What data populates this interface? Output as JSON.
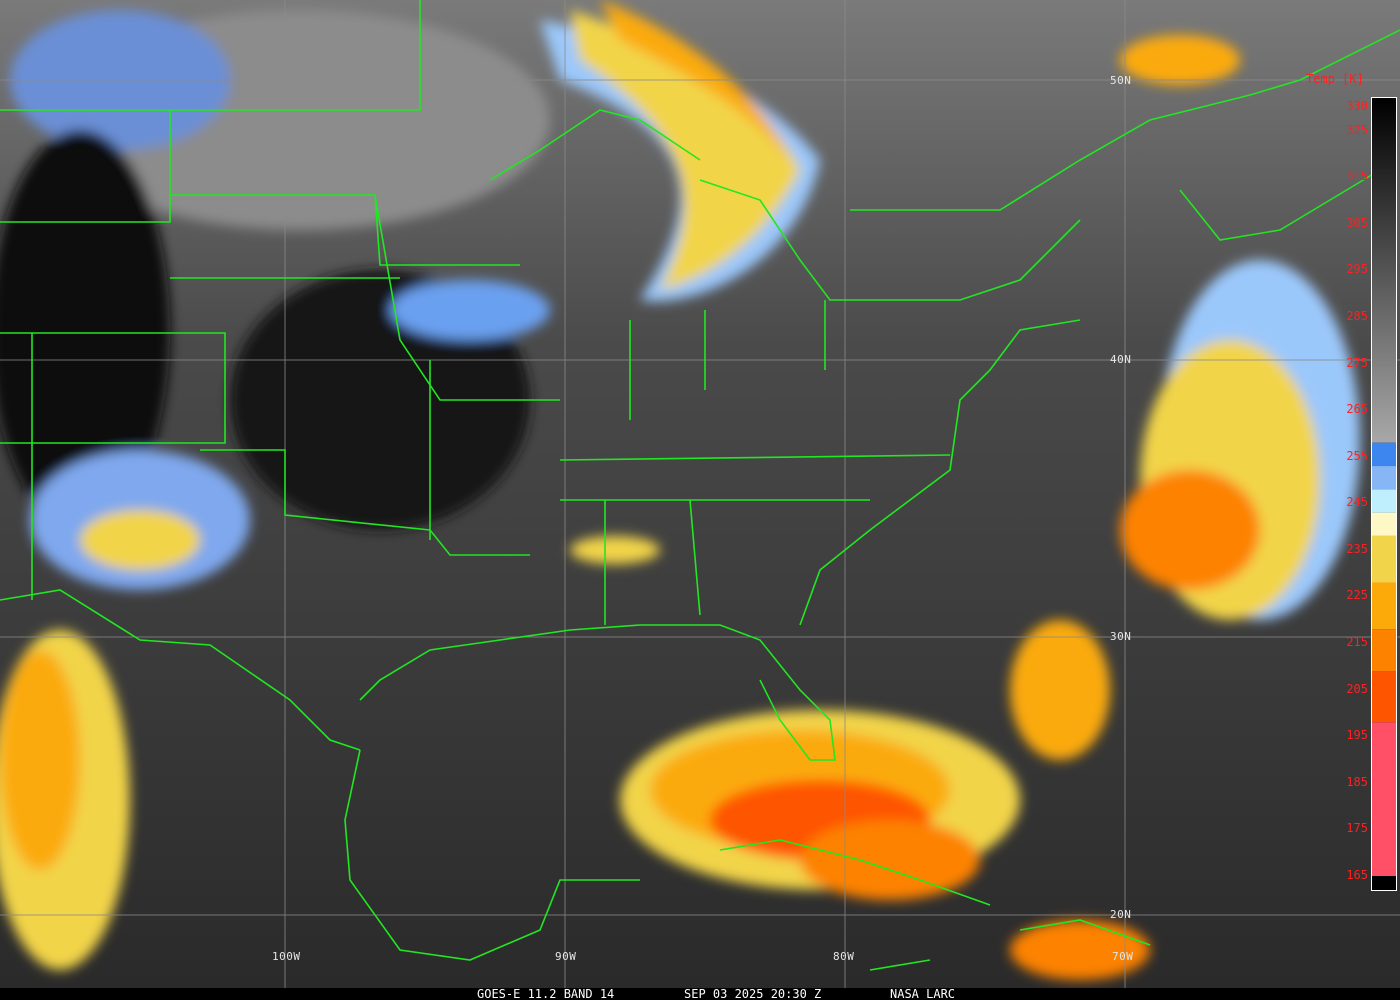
{
  "image": {
    "satellite": "GOES-E",
    "caption": {
      "product": "GOES-E 11.2 BAND 14",
      "datetime": "SEP 03 2025 20:30 Z",
      "source": "NASA LARC"
    },
    "latitude_labels": [
      "50N",
      "40N",
      "30N",
      "20N"
    ],
    "longitude_labels": [
      "100W",
      "90W",
      "80W",
      "70W"
    ],
    "colorbar": {
      "title": "Temp [K]",
      "ticks": [
        "330",
        "325",
        "315",
        "305",
        "295",
        "285",
        "275",
        "265",
        "255",
        "245",
        "235",
        "225",
        "215",
        "205",
        "195",
        "185",
        "175",
        "165"
      ],
      "range_k": [
        162,
        332
      ],
      "segments": [
        {
          "from": 332,
          "to": 258,
          "color": "gradient black-to-gray"
        },
        {
          "from": 258,
          "to": 253,
          "color": "#3d86f0"
        },
        {
          "from": 253,
          "to": 248,
          "color": "#86b6f6"
        },
        {
          "from": 248,
          "to": 243,
          "color": "#bfeffc"
        },
        {
          "from": 243,
          "to": 238,
          "color": "#fdf8c6"
        },
        {
          "from": 238,
          "to": 228,
          "color": "#f2d44a"
        },
        {
          "from": 228,
          "to": 218,
          "color": "#fbaa0a"
        },
        {
          "from": 218,
          "to": 209,
          "color": "#fd8200"
        },
        {
          "from": 209,
          "to": 198,
          "color": "#fe5500"
        },
        {
          "from": 198,
          "to": 165,
          "color": "#ff5068"
        },
        {
          "from": 165,
          "to": 162,
          "color": "#000000"
        }
      ]
    },
    "colors": {
      "boundaries": "#22e622",
      "grid": "#8a8a8a",
      "label_red": "#ff2020"
    }
  }
}
